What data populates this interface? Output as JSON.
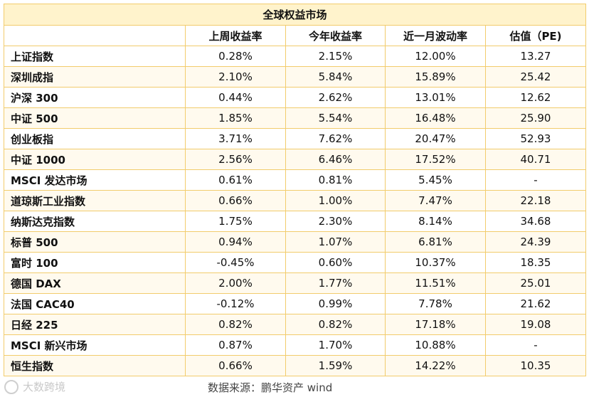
{
  "title": "全球权益市场",
  "columns": [
    "",
    "上周收益率",
    "今年收益率",
    "近一月波动率",
    "估值（PE)"
  ],
  "rows": [
    {
      "name": "上证指数",
      "week": "0.28%",
      "ytd": "2.15%",
      "vol": "12.00%",
      "pe": "13.27"
    },
    {
      "name": "深圳成指",
      "week": "2.10%",
      "ytd": "5.84%",
      "vol": "15.89%",
      "pe": "25.42"
    },
    {
      "name": "沪深 300",
      "week": "0.44%",
      "ytd": "2.62%",
      "vol": "13.01%",
      "pe": "12.62"
    },
    {
      "name": "中证 500",
      "week": "1.85%",
      "ytd": "5.54%",
      "vol": "16.48%",
      "pe": "25.90"
    },
    {
      "name": "创业板指",
      "week": "3.71%",
      "ytd": "7.62%",
      "vol": "20.47%",
      "pe": "52.93"
    },
    {
      "name": "中证 1000",
      "week": "2.56%",
      "ytd": "6.46%",
      "vol": "17.52%",
      "pe": "40.71"
    },
    {
      "name": "MSCI 发达市场",
      "week": "0.61%",
      "ytd": "0.81%",
      "vol": "5.45%",
      "pe": "-"
    },
    {
      "name": "道琼斯工业指数",
      "week": "0.66%",
      "ytd": "1.00%",
      "vol": "7.47%",
      "pe": "22.18"
    },
    {
      "name": "纳斯达克指数",
      "week": "1.75%",
      "ytd": "2.30%",
      "vol": "8.14%",
      "pe": "34.68"
    },
    {
      "name": "标普 500",
      "week": "0.94%",
      "ytd": "1.07%",
      "vol": "6.81%",
      "pe": "24.39"
    },
    {
      "name": "富时 100",
      "week": "-0.45%",
      "ytd": "0.60%",
      "vol": "10.37%",
      "pe": "18.35"
    },
    {
      "name": "德国 DAX",
      "week": "2.00%",
      "ytd": "1.77%",
      "vol": "11.51%",
      "pe": "25.01"
    },
    {
      "name": "法国 CAC40",
      "week": "-0.12%",
      "ytd": "0.99%",
      "vol": "7.78%",
      "pe": "21.62"
    },
    {
      "name": "日经 225",
      "week": "0.82%",
      "ytd": "0.82%",
      "vol": "17.18%",
      "pe": "19.08"
    },
    {
      "name": "MSCI 新兴市场",
      "week": "0.87%",
      "ytd": "1.70%",
      "vol": "10.88%",
      "pe": "-"
    },
    {
      "name": "恒生指数",
      "week": "0.66%",
      "ytd": "1.59%",
      "vol": "14.22%",
      "pe": "10.35"
    }
  ],
  "source": "数据来源：鹏华资产  wind",
  "watermark": "大数跨境",
  "colors": {
    "border": "#f2cc6c",
    "header_bg": "#fff3cc",
    "stripe": "#fffaee"
  }
}
